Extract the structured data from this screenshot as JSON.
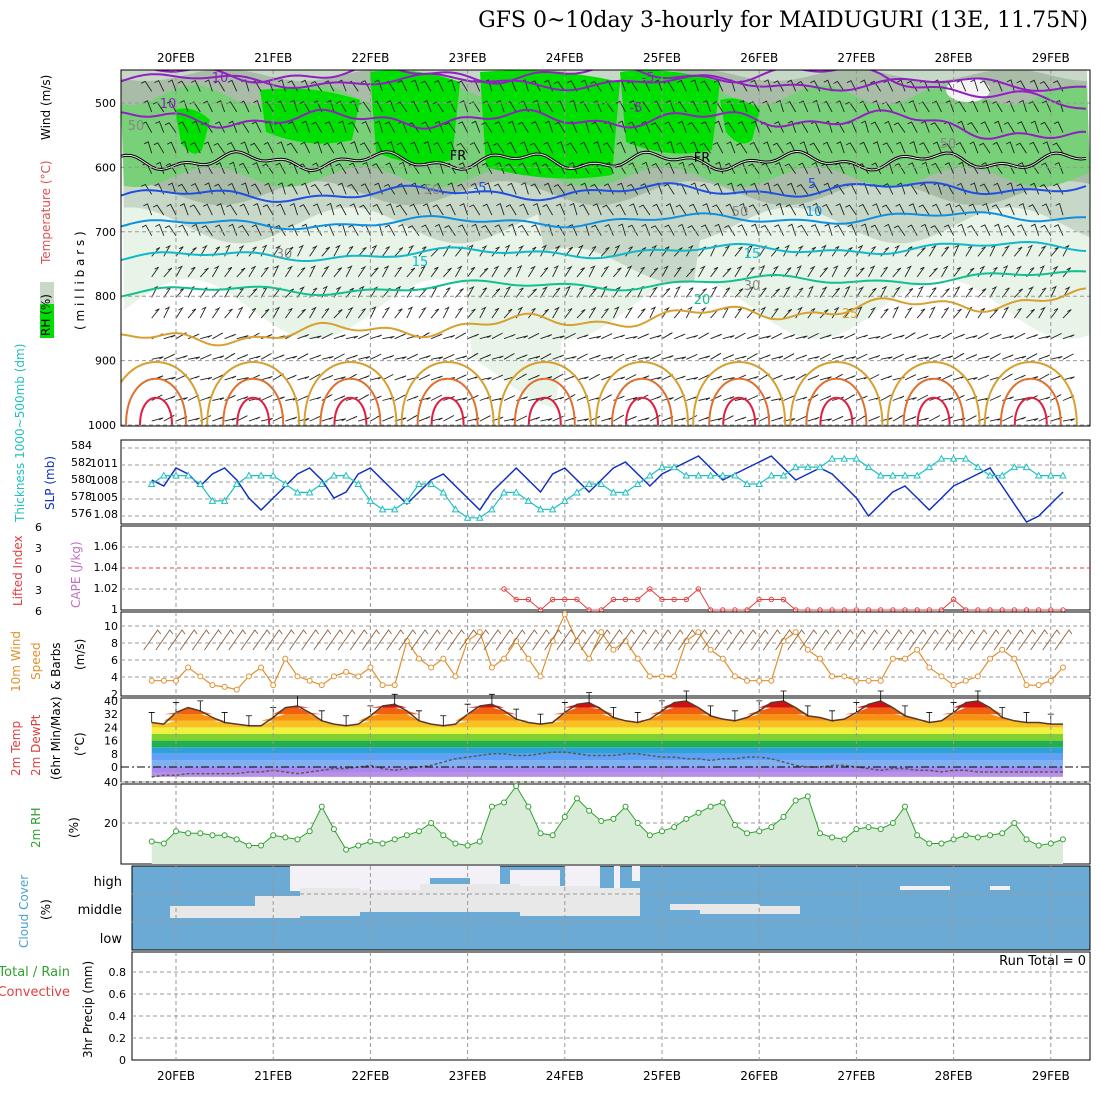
{
  "title": "GFS 0~10day 3-hourly for MAIDUGURI (13E, 11.75N)",
  "dates": [
    "20FEB",
    "21FEB",
    "22FEB",
    "23FEB",
    "24FEB",
    "25FEB",
    "26FEB",
    "27FEB",
    "28FEB",
    "29FEB"
  ],
  "colors": {
    "rh_light": "#e8f4e8",
    "rh_mid": "#c8d8c8",
    "rh_grey": "#a8bca8",
    "rh_green": "#78d078",
    "rh_bright": "#00e000",
    "temp_purple": "#9020c0",
    "temp_blue": "#2050e0",
    "temp_lblue": "#1090e0",
    "temp_cyan": "#10b8c8",
    "temp_teal": "#10c090",
    "temp_gold": "#d8a030",
    "temp_orange": "#e07030",
    "temp_red": "#e02040",
    "slp": "#1030c0",
    "thickness": "#20c0c0",
    "lifted": "#e04040",
    "wind10": "#e09030",
    "rh2m": "#30a030",
    "rh2m_fill": "#d8ecd8",
    "cloud": "#6aaad4",
    "cloud_light": "#e8e8e8"
  },
  "panel_upper": {
    "ylabel_parts": [
      "RH (%)",
      "Temperature (°C)",
      "Wind (m/s)"
    ],
    "yunit": "( m i l l i b a r s )",
    "yticks": [
      "500",
      "600",
      "700",
      "800",
      "900",
      "1000"
    ],
    "contour_labels": [
      "10",
      "-5",
      "10",
      "-5",
      "FR",
      "FR",
      "-5",
      "5",
      "10",
      "15",
      "15",
      "20",
      "25",
      "50",
      "50",
      "50",
      "30",
      "50",
      "30"
    ]
  },
  "panel_slp": {
    "ylabel_parts": [
      "Thickness 1000~500mb (dm)",
      "SLP (mb)"
    ],
    "yticks_left": [
      "584",
      "582",
      "580",
      "578",
      "576"
    ],
    "yticks_right": [
      "1011",
      "1008",
      "1005",
      "1.08"
    ]
  },
  "panel_cape": {
    "ylabel_parts": [
      "Lifted Index",
      "CAPE (J/kg)"
    ],
    "yticks_left": [
      "6",
      "3",
      "0",
      "3",
      "6"
    ],
    "yticks_right": [
      "1.06",
      "1.04",
      "1.02",
      "1"
    ]
  },
  "panel_wind": {
    "ylabel_parts": [
      "10m Wind",
      "Speed",
      "& Barbs"
    ],
    "yunit": "(m/s)",
    "yticks": [
      "10",
      "8",
      "6",
      "4",
      "2"
    ]
  },
  "panel_temp": {
    "ylabel_parts": [
      "2m Temp",
      "2m DewPt",
      "(6hr Min/Max)"
    ],
    "yunit": "(°C)",
    "yticks": [
      "40",
      "32",
      "24",
      "16",
      "8",
      "0"
    ]
  },
  "panel_rh": {
    "ylabel_parts": [
      "2m RH"
    ],
    "yunit": "(%)",
    "yticks": [
      "40",
      "20"
    ]
  },
  "panel_cloud": {
    "ylabel_parts": [
      "Cloud Cover"
    ],
    "yunit": "(%)",
    "levels": [
      "high",
      "middle",
      "low"
    ]
  },
  "panel_precip": {
    "ylabel_parts": [
      "Total / Rain",
      "Convective"
    ],
    "yunit": "3hr Precip (mm)",
    "yticks": [
      "0.8",
      "0.6",
      "0.4",
      "0.2",
      "0"
    ],
    "run_total": "Run Total = 0"
  },
  "chart_data": {
    "type": "line",
    "x": [
      "19FEB18",
      "20FEB00",
      "20FEB03",
      "20FEB06",
      "20FEB09",
      "20FEB12",
      "20FEB15",
      "20FEB18",
      "20FEB21",
      "21FEB00",
      "21FEB03",
      "21FEB06",
      "21FEB09",
      "21FEB12",
      "21FEB15",
      "21FEB18",
      "21FEB21",
      "22FEB00",
      "22FEB03",
      "22FEB06",
      "22FEB09",
      "22FEB12",
      "22FEB15",
      "22FEB18",
      "22FEB21",
      "23FEB00",
      "23FEB03",
      "23FEB06",
      "23FEB09",
      "23FEB12",
      "23FEB15",
      "23FEB18",
      "23FEB21",
      "24FEB00",
      "24FEB03",
      "24FEB06",
      "24FEB09",
      "24FEB12",
      "24FEB15",
      "24FEB18",
      "24FEB21",
      "25FEB00",
      "25FEB03",
      "25FEB06",
      "25FEB09",
      "25FEB12",
      "25FEB15",
      "25FEB18",
      "25FEB21",
      "26FEB00",
      "26FEB03",
      "26FEB06",
      "26FEB09",
      "26FEB12",
      "26FEB15",
      "26FEB18",
      "26FEB21",
      "27FEB00",
      "27FEB03",
      "27FEB06",
      "27FEB09",
      "27FEB12",
      "27FEB15",
      "27FEB18",
      "27FEB21",
      "28FEB00",
      "28FEB03",
      "28FEB06",
      "28FEB09",
      "28FEB12",
      "28FEB15",
      "28FEB18",
      "28FEB21",
      "29FEB00",
      "29FEB03",
      "29FEB06"
    ],
    "series": [
      {
        "values": [
          1009,
          1008,
          1011,
          1010,
          1008,
          1010,
          1011,
          1009,
          1006,
          1004,
          1006,
          1008,
          1010,
          1011,
          1009,
          1006,
          1007,
          1010,
          1011,
          1009,
          1007,
          1005,
          1007,
          1009,
          1010,
          1008,
          1006,
          1004,
          1007,
          1009,
          1011,
          1009,
          1007,
          1010,
          1011,
          1009,
          1007,
          1009,
          1011,
          1012,
          1010,
          1008,
          1010,
          1011,
          1012,
          1013,
          1011,
          1009,
          1010,
          1011,
          1012,
          1013,
          1011,
          1009,
          1010,
          1011,
          1010,
          1008,
          1006,
          1003,
          1005,
          1007,
          1008,
          1006,
          1004,
          1006,
          1008,
          1009,
          1010,
          1011,
          1008,
          1005,
          1002,
          1003,
          1005,
          1007
        ]
      },
      {
        "values": [
          580,
          581,
          581,
          581,
          580,
          578,
          578,
          580,
          581,
          581,
          581,
          580,
          579,
          579,
          580,
          581,
          581,
          580,
          578,
          577,
          577,
          578,
          580,
          580,
          579,
          577,
          576,
          576,
          577,
          579,
          579,
          578,
          577,
          577,
          578,
          579,
          580,
          580,
          579,
          579,
          580,
          581,
          582,
          582,
          581,
          581,
          581,
          581,
          581,
          580,
          580,
          581,
          581,
          582,
          582,
          582,
          583,
          583,
          583,
          582,
          581,
          581,
          581,
          581,
          582,
          583,
          583,
          583,
          582,
          581,
          581,
          582,
          582,
          581,
          581,
          581
        ]
      },
      {
        "values": [
          0,
          0,
          0,
          0,
          0,
          0,
          0,
          0,
          0,
          0,
          0,
          0,
          0,
          0,
          0,
          0,
          0,
          0,
          0,
          0,
          0,
          0,
          0,
          0,
          0,
          0,
          0,
          0,
          0,
          1.02,
          1.01,
          1.01,
          1.0,
          1.01,
          1.01,
          1.01,
          1.0,
          1.0,
          1.01,
          1.01,
          1.01,
          1.02,
          1.01,
          1.01,
          1.01,
          1.02,
          1.0,
          1.0,
          1.0,
          1.0,
          1.01,
          1.01,
          1.01,
          1.0,
          1.0,
          1.0,
          1.0,
          1.0,
          1.0,
          1.0,
          1.0,
          1.0,
          1.0,
          1.0,
          1.0,
          1.0,
          1.01,
          1.0,
          1.0,
          1.0,
          1.0,
          1.0,
          1.0,
          1.0,
          1.0,
          1.0
        ]
      },
      {
        "values": [
          3.5,
          3.5,
          3.5,
          5,
          4,
          3,
          2.8,
          2.5,
          4,
          5,
          3,
          6,
          4,
          3.5,
          3,
          4,
          4.5,
          4,
          5,
          3,
          3,
          8,
          6,
          5,
          6,
          4,
          8,
          9,
          5,
          6,
          8,
          6,
          4,
          8,
          11,
          8,
          6,
          9,
          7,
          8,
          6,
          4,
          4,
          4,
          8,
          9,
          7,
          6,
          4,
          3.5,
          3.5,
          3.5,
          8,
          9,
          7,
          6,
          4,
          4,
          3.5,
          3.5,
          3.5,
          6,
          6,
          7,
          5,
          4,
          3,
          3.5,
          4,
          6,
          7,
          6,
          3,
          3,
          3.5,
          5
        ]
      },
      {
        "values": [
          27,
          26,
          33,
          36,
          34,
          30,
          27,
          26,
          25,
          25,
          30,
          36,
          37,
          33,
          28,
          26,
          25,
          26,
          31,
          37,
          38,
          34,
          28,
          26,
          25,
          26,
          32,
          37,
          38,
          34,
          29,
          27,
          26,
          27,
          33,
          38,
          39,
          35,
          30,
          28,
          27,
          29,
          34,
          39,
          40,
          36,
          31,
          29,
          28,
          30,
          34,
          39,
          40,
          36,
          31,
          30,
          28,
          29,
          33,
          38,
          40,
          36,
          31,
          29,
          27,
          28,
          33,
          39,
          40,
          36,
          30,
          28,
          27,
          27,
          26,
          26
        ]
      },
      {
        "values": [
          -6,
          -5,
          -5,
          -4,
          -4,
          -4,
          -4,
          -4,
          -3,
          -3,
          -2,
          -3,
          -4,
          -3,
          -2,
          -1,
          -1,
          0,
          1,
          -1,
          -2,
          -1,
          0,
          1,
          3,
          5,
          6,
          7,
          8,
          8,
          7,
          7,
          8,
          9,
          9,
          8,
          7,
          7,
          7,
          8,
          8,
          7,
          6,
          6,
          5,
          5,
          4,
          5,
          5,
          6,
          6,
          5,
          3,
          1,
          0,
          0,
          1,
          1,
          0,
          -1,
          -2,
          -1,
          -1,
          -2,
          -2,
          -3,
          -2,
          -2,
          -3,
          -3,
          -3,
          -3,
          -3,
          -3,
          -3,
          -3
        ]
      },
      {
        "values": [
          11,
          10,
          16,
          15,
          15,
          14,
          14,
          12,
          9,
          9,
          14,
          13,
          12,
          16,
          28,
          17,
          7,
          9,
          11,
          10,
          12,
          14,
          16,
          20,
          14,
          10,
          9,
          11,
          28,
          30,
          38,
          28,
          15,
          14,
          23,
          32,
          26,
          21,
          22,
          28,
          20,
          14,
          16,
          18,
          22,
          25,
          28,
          30,
          19,
          15,
          16,
          18,
          23,
          31,
          33,
          15,
          13,
          12,
          17,
          18,
          17,
          20,
          28,
          14,
          10,
          10,
          12,
          14,
          13,
          14,
          15,
          20,
          12,
          9,
          10,
          12
        ]
      }
    ]
  }
}
